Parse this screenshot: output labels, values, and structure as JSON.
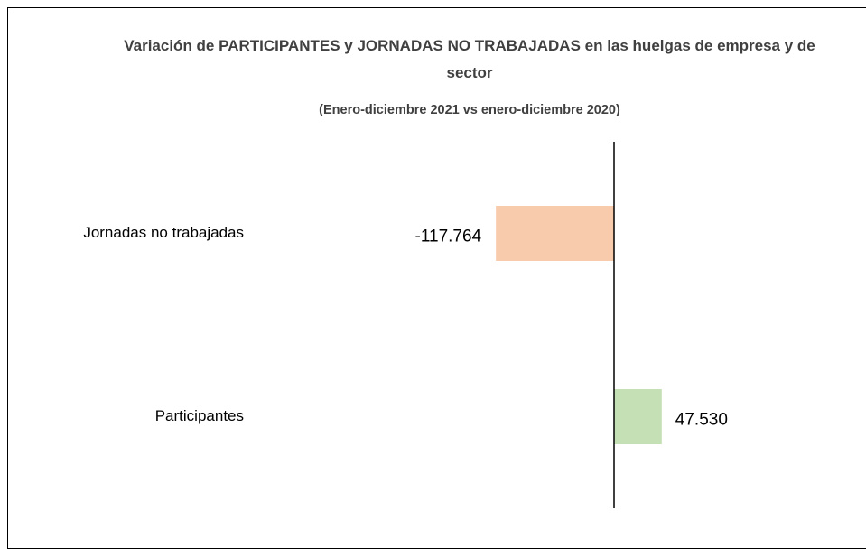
{
  "chart_data": {
    "type": "bar",
    "orientation": "horizontal",
    "title": "Variación de PARTICIPANTES  y JORNADAS NO TRABAJADAS en las huelgas de empresa y de sector",
    "subtitle": "(Enero-diciembre 2021 vs enero-diciembre 2020)",
    "categories": [
      "Jornadas no trabajadas",
      "Participantes"
    ],
    "values": [
      -117764,
      47530
    ],
    "value_labels": [
      "-117.764",
      "47.530"
    ],
    "colors": [
      "#f8cbad",
      "#c5e0b4"
    ],
    "xlim": [
      -360000,
      225000
    ]
  }
}
